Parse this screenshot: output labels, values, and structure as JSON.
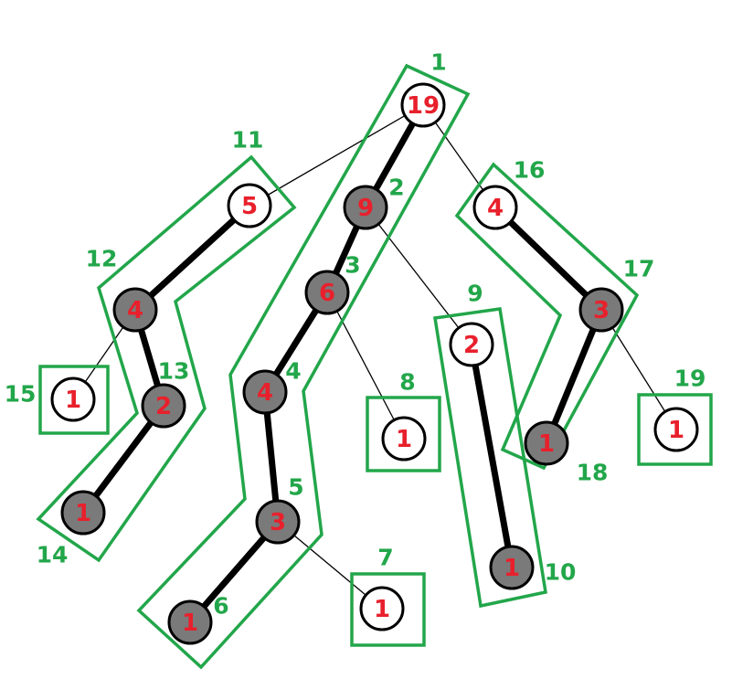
{
  "colors": {
    "heavy_fill": "#7a7a7a",
    "light_fill": "#ffffff",
    "value_text": "#e8202c",
    "chain_outline": "#22a64a",
    "edge": "#000000"
  },
  "nodes": [
    {
      "id": "n19",
      "value": "19",
      "order": "1",
      "heavy": false
    },
    {
      "id": "n5",
      "value": "5",
      "order": "11",
      "heavy": false
    },
    {
      "id": "n9",
      "value": "9",
      "order": "2",
      "heavy": true
    },
    {
      "id": "n4r",
      "value": "4",
      "order": "16",
      "heavy": false
    },
    {
      "id": "n4l",
      "value": "4",
      "order": "12",
      "heavy": true
    },
    {
      "id": "n6",
      "value": "6",
      "order": "3",
      "heavy": true
    },
    {
      "id": "n3r",
      "value": "3",
      "order": "17",
      "heavy": true
    },
    {
      "id": "n2m",
      "value": "2",
      "order": "9",
      "heavy": false
    },
    {
      "id": "n1a",
      "value": "1",
      "order": "15",
      "heavy": false
    },
    {
      "id": "n2l",
      "value": "2",
      "order": "13",
      "heavy": true
    },
    {
      "id": "n4m",
      "value": "4",
      "order": "4",
      "heavy": true
    },
    {
      "id": "n1b",
      "value": "1",
      "order": "8",
      "heavy": false
    },
    {
      "id": "n1c",
      "value": "1",
      "order": "19",
      "heavy": false
    },
    {
      "id": "n1d",
      "value": "1",
      "order": "18",
      "heavy": true
    },
    {
      "id": "n1e",
      "value": "1",
      "order": "14",
      "heavy": true
    },
    {
      "id": "n3m",
      "value": "3",
      "order": "5",
      "heavy": true
    },
    {
      "id": "n1f",
      "value": "1",
      "order": "10",
      "heavy": true
    },
    {
      "id": "n1g",
      "value": "1",
      "order": "7",
      "heavy": false
    },
    {
      "id": "n1h",
      "value": "1",
      "order": "6",
      "heavy": true
    }
  ],
  "edges": [
    {
      "from": "n19",
      "to": "n5",
      "heavy": false
    },
    {
      "from": "n19",
      "to": "n9",
      "heavy": true
    },
    {
      "from": "n19",
      "to": "n4r",
      "heavy": false
    },
    {
      "from": "n5",
      "to": "n4l",
      "heavy": true
    },
    {
      "from": "n4l",
      "to": "n1a",
      "heavy": false
    },
    {
      "from": "n4l",
      "to": "n2l",
      "heavy": true
    },
    {
      "from": "n2l",
      "to": "n1e",
      "heavy": true
    },
    {
      "from": "n9",
      "to": "n6",
      "heavy": true
    },
    {
      "from": "n9",
      "to": "n2m",
      "heavy": false
    },
    {
      "from": "n6",
      "to": "n4m",
      "heavy": true
    },
    {
      "from": "n6",
      "to": "n1b",
      "heavy": false
    },
    {
      "from": "n4m",
      "to": "n3m",
      "heavy": true
    },
    {
      "from": "n3m",
      "to": "n1h",
      "heavy": true
    },
    {
      "from": "n3m",
      "to": "n1g",
      "heavy": false
    },
    {
      "from": "n2m",
      "to": "n1f",
      "heavy": true
    },
    {
      "from": "n4r",
      "to": "n3r",
      "heavy": true
    },
    {
      "from": "n3r",
      "to": "n1d",
      "heavy": true
    },
    {
      "from": "n3r",
      "to": "n1c",
      "heavy": false
    }
  ],
  "chains": [
    {
      "id": "chain-19-9-6-4-3-1",
      "nodes": [
        "n19",
        "n9",
        "n6",
        "n4m",
        "n3m",
        "n1h"
      ]
    },
    {
      "id": "chain-5-4-2-1",
      "nodes": [
        "n5",
        "n4l",
        "n2l",
        "n1e"
      ]
    },
    {
      "id": "chain-4-3-1",
      "nodes": [
        "n4r",
        "n3r",
        "n1d"
      ]
    },
    {
      "id": "chain-2-1",
      "nodes": [
        "n2m",
        "n1f"
      ]
    },
    {
      "id": "chain-single-1-order-15",
      "nodes": [
        "n1a"
      ]
    },
    {
      "id": "chain-single-1-order-8",
      "nodes": [
        "n1b"
      ]
    },
    {
      "id": "chain-single-1-order-7",
      "nodes": [
        "n1g"
      ]
    },
    {
      "id": "chain-single-1-order-19",
      "nodes": [
        "n1c"
      ]
    }
  ]
}
